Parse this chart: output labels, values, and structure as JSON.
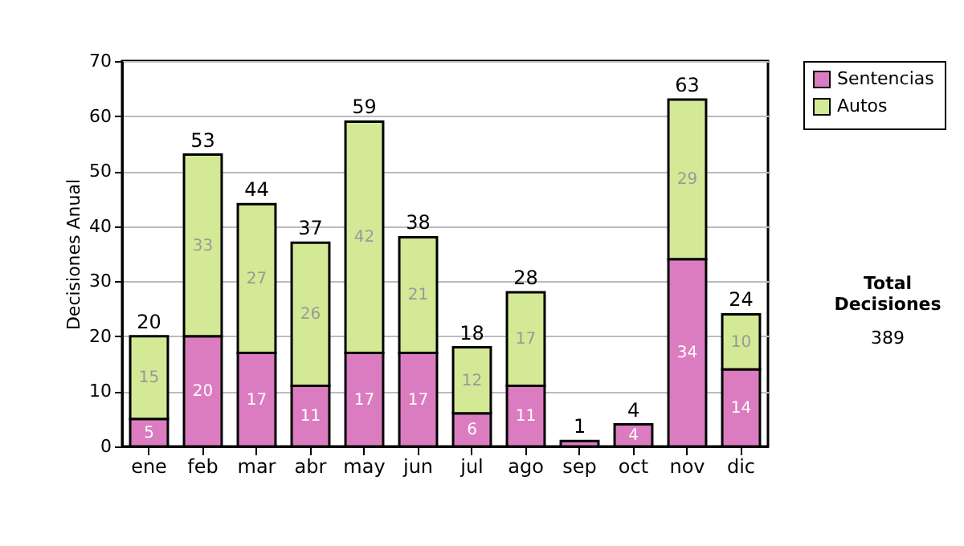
{
  "chart_data": {
    "type": "bar",
    "stacked": true,
    "ylabel": "Decisiones Anual",
    "categories": [
      "ene",
      "feb",
      "mar",
      "abr",
      "may",
      "jun",
      "jul",
      "ago",
      "sep",
      "oct",
      "nov",
      "dic"
    ],
    "series": [
      {
        "name": "Sentencias",
        "color": "#dc7cc0",
        "values": [
          5,
          20,
          17,
          11,
          17,
          17,
          6,
          11,
          1,
          4,
          34,
          14
        ],
        "value_labels": [
          "5",
          "20",
          "17",
          "11",
          "17",
          "17",
          "6",
          "11",
          null,
          "4",
          "34",
          "14"
        ]
      },
      {
        "name": "Autos",
        "color": "#d3e996",
        "values": [
          15,
          33,
          27,
          26,
          42,
          21,
          12,
          17,
          0,
          0,
          29,
          10
        ],
        "value_labels": [
          "15",
          "33",
          "27",
          "26",
          "42",
          "21",
          "12",
          "17",
          null,
          null,
          "29",
          "10"
        ]
      }
    ],
    "totals": [
      "20",
      "53",
      "44",
      "37",
      "59",
      "38",
      "18",
      "28",
      "1",
      "4",
      "63",
      "24"
    ],
    "ylim": [
      0,
      70
    ],
    "yticks": [
      0,
      10,
      20,
      30,
      40,
      50,
      60,
      70
    ],
    "grid": "y",
    "legend": "right",
    "annotations": [
      "Total Decisiones",
      "389"
    ]
  }
}
